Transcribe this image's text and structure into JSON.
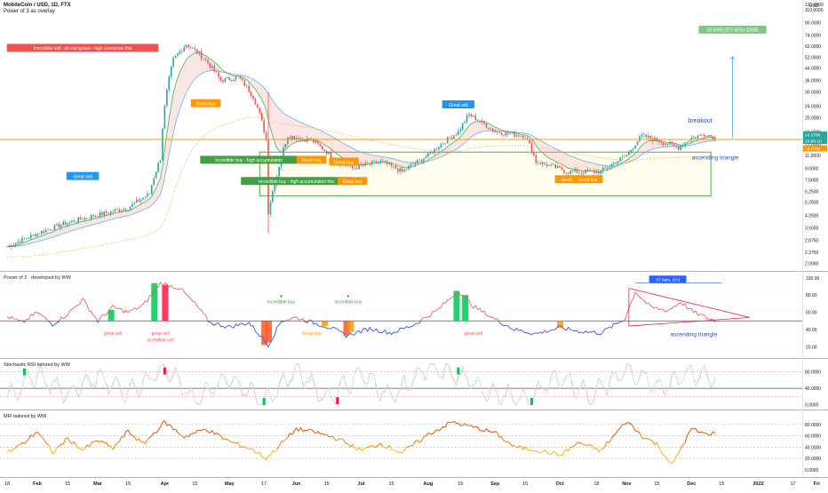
{
  "header": {
    "symbol": "MobileCoin / USD, 1D, FTX",
    "indicator": "Power of 3 as overlay"
  },
  "colors": {
    "up": "#26a69a",
    "down": "#ef5350",
    "price_line": "#ff9800",
    "ema_fast": "#4caf50",
    "ema_slow": "#64b5f6",
    "dots": "#ffb74d",
    "box": "#4caf50",
    "arrow": "#42a5f5",
    "target": "#81c784",
    "rsi_line": "#ef5350",
    "rsi_low": "#2962ff",
    "triangle": "#e91e63"
  },
  "chart_data": [
    {
      "type": "candlestick",
      "scale": "log",
      "ylim": [
        1.9,
        120
      ],
      "xlim": [
        "2021-01-18",
        "2022-01-26"
      ],
      "y_ticks": [
        "120.0000",
        "110.0000",
        "90.0000",
        "74.0000",
        "62.0000",
        "52.0000",
        "44.0000",
        "36.0000",
        "30.0000",
        "24.0000",
        "20.0000",
        "16.0000",
        "13.0000",
        "11.0000",
        "9.0000",
        "7.5000",
        "6.2500",
        "5.2500",
        "4.2500",
        "3.5000",
        "2.8750",
        "2.3750",
        "2.0000"
      ],
      "last_price_label": "14.3780",
      "countdown_label": "15:58:10",
      "level_label": "14.1700",
      "currency_label": "USD",
      "key_points": [
        {
          "date": "2021-01-18",
          "value": 2.6
        },
        {
          "date": "2021-02-01",
          "value": 3.2
        },
        {
          "date": "2021-02-15",
          "value": 3.8
        },
        {
          "date": "2021-03-01",
          "value": 4.3
        },
        {
          "date": "2021-03-15",
          "value": 4.8
        },
        {
          "date": "2021-03-25",
          "value": 6.0
        },
        {
          "date": "2021-03-30",
          "value": 10.5
        },
        {
          "date": "2021-04-05",
          "value": 50.0
        },
        {
          "date": "2021-04-11",
          "value": 64.0
        },
        {
          "date": "2021-04-17",
          "value": 55.0
        },
        {
          "date": "2021-04-27",
          "value": 36.0
        },
        {
          "date": "2021-05-05",
          "value": 38.0
        },
        {
          "date": "2021-05-12",
          "value": 28.0
        },
        {
          "date": "2021-05-18",
          "value": 14.0
        },
        {
          "date": "2021-05-19",
          "value": 4.5
        },
        {
          "date": "2021-05-23",
          "value": 8.0
        },
        {
          "date": "2021-05-28",
          "value": 15.0
        },
        {
          "date": "2021-06-08",
          "value": 14.0
        },
        {
          "date": "2021-06-20",
          "value": 10.0
        },
        {
          "date": "2021-06-27",
          "value": 9.0
        },
        {
          "date": "2021-07-10",
          "value": 10.0
        },
        {
          "date": "2021-07-20",
          "value": 8.5
        },
        {
          "date": "2021-08-01",
          "value": 11.0
        },
        {
          "date": "2021-08-15",
          "value": 16.0
        },
        {
          "date": "2021-08-20",
          "value": 21.0
        },
        {
          "date": "2021-09-01",
          "value": 16.0
        },
        {
          "date": "2021-09-15",
          "value": 15.0
        },
        {
          "date": "2021-09-20",
          "value": 10.0
        },
        {
          "date": "2021-10-05",
          "value": 8.5
        },
        {
          "date": "2021-10-20",
          "value": 8.5
        },
        {
          "date": "2021-11-01",
          "value": 11.0
        },
        {
          "date": "2021-11-08",
          "value": 15.0
        },
        {
          "date": "2021-11-15",
          "value": 14.0
        },
        {
          "date": "2021-11-25",
          "value": 12.5
        },
        {
          "date": "2021-12-01",
          "value": 14.5
        },
        {
          "date": "2021-12-08",
          "value": 15.5
        },
        {
          "date": "2021-12-12",
          "value": 14.4
        }
      ],
      "level": 14.17,
      "target_value": 94,
      "box": {
        "from": "2021-05-15",
        "to": "2021-12-10",
        "top": 11.6,
        "bottom": 5.8
      },
      "annotations": [
        {
          "text": "Incredible sell - do not ignore - high conviction this",
          "date": "2021-02-22",
          "value": 60,
          "kind": "sell_strong"
        },
        {
          "text": "Great sell",
          "date": "2021-02-22",
          "value": 7.9,
          "kind": "sell"
        },
        {
          "text": "Great buy",
          "date": "2021-04-20",
          "value": 25,
          "kind": "buy"
        },
        {
          "text": "Incredible buy - high accumulation",
          "date": "2021-05-10",
          "value": 10.2,
          "kind": "buy_strong"
        },
        {
          "text": "Great buy",
          "date": "2021-06-08",
          "value": 10.2,
          "kind": "buy"
        },
        {
          "text": "Incredible buy - high accumulation this",
          "date": "2021-06-01",
          "value": 7.3,
          "kind": "buy_strong"
        },
        {
          "text": "Great buy",
          "date": "2021-06-23",
          "value": 9.9,
          "kind": "buy"
        },
        {
          "text": "Great buy",
          "date": "2021-06-27",
          "value": 7.3,
          "kind": "buy"
        },
        {
          "text": "Great sell",
          "date": "2021-08-15",
          "value": 24.5,
          "kind": "sell"
        },
        {
          "text": "Great...",
          "date": "2021-10-05",
          "value": 7.5,
          "kind": "buy"
        },
        {
          "text": "Great buy",
          "date": "2021-10-14",
          "value": 7.5,
          "kind": "buy"
        },
        {
          "text": "50.9095 (372.40%) 10585",
          "date": "2021-12-20",
          "value": 80,
          "kind": "target"
        },
        {
          "text": "breakout",
          "date": "2021-12-05",
          "value": 18.5,
          "kind": "note"
        },
        {
          "text": "ascending triangle",
          "date": "2021-12-12",
          "value": 10.3,
          "kind": "note"
        }
      ]
    },
    {
      "type": "line",
      "title": "Power of 3 - developed by WW",
      "ylim": [
        10,
        104
      ],
      "y_ticks": [
        "100.00",
        "80.00",
        "60.00",
        "40.00",
        "20.00"
      ],
      "midline": 50,
      "key_points": [
        {
          "date": "2021-01-18",
          "value": 55
        },
        {
          "date": "2021-01-25",
          "value": 48
        },
        {
          "date": "2021-02-01",
          "value": 60
        },
        {
          "date": "2021-02-08",
          "value": 46
        },
        {
          "date": "2021-02-15",
          "value": 58
        },
        {
          "date": "2021-02-22",
          "value": 75
        },
        {
          "date": "2021-03-01",
          "value": 50
        },
        {
          "date": "2021-03-08",
          "value": 66
        },
        {
          "date": "2021-03-15",
          "value": 60
        },
        {
          "date": "2021-03-22",
          "value": 68
        },
        {
          "date": "2021-03-30",
          "value": 94
        },
        {
          "date": "2021-04-08",
          "value": 88
        },
        {
          "date": "2021-04-15",
          "value": 70
        },
        {
          "date": "2021-04-22",
          "value": 48
        },
        {
          "date": "2021-05-01",
          "value": 43
        },
        {
          "date": "2021-05-10",
          "value": 48
        },
        {
          "date": "2021-05-19",
          "value": 22
        },
        {
          "date": "2021-05-25",
          "value": 50
        },
        {
          "date": "2021-06-01",
          "value": 54
        },
        {
          "date": "2021-06-10",
          "value": 47
        },
        {
          "date": "2021-06-17",
          "value": 42
        },
        {
          "date": "2021-06-24",
          "value": 33
        },
        {
          "date": "2021-07-05",
          "value": 41
        },
        {
          "date": "2021-07-15",
          "value": 36
        },
        {
          "date": "2021-07-25",
          "value": 45
        },
        {
          "date": "2021-08-05",
          "value": 62
        },
        {
          "date": "2021-08-15",
          "value": 85
        },
        {
          "date": "2021-08-22",
          "value": 67
        },
        {
          "date": "2021-09-01",
          "value": 52
        },
        {
          "date": "2021-09-10",
          "value": 40
        },
        {
          "date": "2021-09-20",
          "value": 35
        },
        {
          "date": "2021-10-01",
          "value": 42
        },
        {
          "date": "2021-10-10",
          "value": 38
        },
        {
          "date": "2021-10-20",
          "value": 36
        },
        {
          "date": "2021-10-31",
          "value": 52
        },
        {
          "date": "2021-11-05",
          "value": 84
        },
        {
          "date": "2021-11-12",
          "value": 66
        },
        {
          "date": "2021-11-20",
          "value": 62
        },
        {
          "date": "2021-11-26",
          "value": 72
        },
        {
          "date": "2021-12-02",
          "value": 60
        },
        {
          "date": "2021-12-08",
          "value": 54
        },
        {
          "date": "2021-12-12",
          "value": 50
        }
      ],
      "annotations": [
        {
          "text": "great sell",
          "date": "2021-03-08",
          "value": 34,
          "kind": "sell"
        },
        {
          "text": "great sell",
          "date": "2021-03-30",
          "value": 34,
          "kind": "sell"
        },
        {
          "text": "incredible sell",
          "date": "2021-03-30",
          "value": 26,
          "kind": "sell"
        },
        {
          "text": "incredible buy",
          "date": "2021-05-25",
          "value": 85,
          "kind": "buy"
        },
        {
          "text": "incredible buy",
          "date": "2021-06-25",
          "value": 85,
          "kind": "buy"
        },
        {
          "text": "Great buy",
          "date": "2021-06-08",
          "value": 34,
          "kind": "buy_o"
        },
        {
          "text": "great sell",
          "date": "2021-08-22",
          "value": 34,
          "kind": "sell"
        },
        {
          "text": "37 bars, 37d",
          "date": "2021-11-20",
          "value": 98,
          "kind": "measure"
        },
        {
          "text": "ascending triangle",
          "date": "2021-12-02",
          "value": 32,
          "kind": "note"
        }
      ]
    },
    {
      "type": "line",
      "title": "Stochastic RSI tailored by WW",
      "ylim": [
        -5,
        105
      ],
      "y_ticks": [
        "80.0000",
        "40.0000",
        "0.0000"
      ],
      "key_points": [
        {
          "date": "2021-01-18",
          "value": 20
        },
        {
          "date": "2021-02-01",
          "value": 75
        },
        {
          "date": "2021-02-15",
          "value": 25
        },
        {
          "date": "2021-03-01",
          "value": 70
        },
        {
          "date": "2021-03-15",
          "value": 30
        },
        {
          "date": "2021-04-01",
          "value": 90
        },
        {
          "date": "2021-04-15",
          "value": 10
        },
        {
          "date": "2021-05-01",
          "value": 65
        },
        {
          "date": "2021-05-17",
          "value": 5
        },
        {
          "date": "2021-06-01",
          "value": 85
        },
        {
          "date": "2021-06-15",
          "value": 15
        },
        {
          "date": "2021-07-01",
          "value": 75
        },
        {
          "date": "2021-07-15",
          "value": 20
        },
        {
          "date": "2021-08-01",
          "value": 90
        },
        {
          "date": "2021-08-15",
          "value": 70
        },
        {
          "date": "2021-09-01",
          "value": 25
        },
        {
          "date": "2021-09-15",
          "value": 10
        },
        {
          "date": "2021-10-01",
          "value": 70
        },
        {
          "date": "2021-10-15",
          "value": 20
        },
        {
          "date": "2021-11-01",
          "value": 85
        },
        {
          "date": "2021-11-15",
          "value": 40
        },
        {
          "date": "2021-12-01",
          "value": 80
        },
        {
          "date": "2021-12-12",
          "value": 65
        }
      ]
    },
    {
      "type": "line",
      "title": "MFI tailored by WW",
      "ylim": [
        -5,
        100
      ],
      "y_ticks": [
        "80.0000",
        "60.0000",
        "40.0000",
        "20.0000",
        "0.0000"
      ],
      "key_points": [
        {
          "date": "2021-01-18",
          "value": 30
        },
        {
          "date": "2021-01-25",
          "value": 45
        },
        {
          "date": "2021-02-01",
          "value": 68
        },
        {
          "date": "2021-02-08",
          "value": 30
        },
        {
          "date": "2021-02-15",
          "value": 55
        },
        {
          "date": "2021-02-22",
          "value": 35
        },
        {
          "date": "2021-03-01",
          "value": 52
        },
        {
          "date": "2021-03-08",
          "value": 38
        },
        {
          "date": "2021-03-15",
          "value": 68
        },
        {
          "date": "2021-03-22",
          "value": 45
        },
        {
          "date": "2021-04-01",
          "value": 84
        },
        {
          "date": "2021-04-10",
          "value": 58
        },
        {
          "date": "2021-04-20",
          "value": 72
        },
        {
          "date": "2021-05-01",
          "value": 50
        },
        {
          "date": "2021-05-12",
          "value": 35
        },
        {
          "date": "2021-05-18",
          "value": 20
        },
        {
          "date": "2021-06-01",
          "value": 72
        },
        {
          "date": "2021-06-10",
          "value": 66
        },
        {
          "date": "2021-06-20",
          "value": 55
        },
        {
          "date": "2021-07-01",
          "value": 34
        },
        {
          "date": "2021-07-10",
          "value": 46
        },
        {
          "date": "2021-07-20",
          "value": 30
        },
        {
          "date": "2021-08-01",
          "value": 62
        },
        {
          "date": "2021-08-12",
          "value": 84
        },
        {
          "date": "2021-08-22",
          "value": 75
        },
        {
          "date": "2021-09-01",
          "value": 65
        },
        {
          "date": "2021-09-10",
          "value": 40
        },
        {
          "date": "2021-09-20",
          "value": 35
        },
        {
          "date": "2021-10-01",
          "value": 26
        },
        {
          "date": "2021-10-10",
          "value": 48
        },
        {
          "date": "2021-10-20",
          "value": 33
        },
        {
          "date": "2021-11-01",
          "value": 86
        },
        {
          "date": "2021-11-08",
          "value": 60
        },
        {
          "date": "2021-11-15",
          "value": 45
        },
        {
          "date": "2021-11-22",
          "value": 8
        },
        {
          "date": "2021-12-01",
          "value": 72
        },
        {
          "date": "2021-12-08",
          "value": 62
        },
        {
          "date": "2021-12-12",
          "value": 66
        }
      ]
    }
  ],
  "x_axis": {
    "ticks": [
      {
        "label": "18",
        "date": "2021-01-18"
      },
      {
        "label": "Feb",
        "date": "2021-02-01"
      },
      {
        "label": "15",
        "date": "2021-02-15"
      },
      {
        "label": "Mar",
        "date": "2021-03-01"
      },
      {
        "label": "15",
        "date": "2021-03-15"
      },
      {
        "label": "Apr",
        "date": "2021-04-01"
      },
      {
        "label": "15",
        "date": "2021-04-15"
      },
      {
        "label": "May",
        "date": "2021-05-01"
      },
      {
        "label": "17",
        "date": "2021-05-17"
      },
      {
        "label": "Jun",
        "date": "2021-06-01"
      },
      {
        "label": "15",
        "date": "2021-06-15"
      },
      {
        "label": "Jul",
        "date": "2021-07-01"
      },
      {
        "label": "15",
        "date": "2021-07-15"
      },
      {
        "label": "Aug",
        "date": "2021-08-01"
      },
      {
        "label": "16",
        "date": "2021-08-16"
      },
      {
        "label": "Sep",
        "date": "2021-09-01"
      },
      {
        "label": "15",
        "date": "2021-09-15"
      },
      {
        "label": "Oct",
        "date": "2021-10-01"
      },
      {
        "label": "18",
        "date": "2021-10-18"
      },
      {
        "label": "Nov",
        "date": "2021-11-01"
      },
      {
        "label": "15",
        "date": "2021-11-15"
      },
      {
        "label": "Dec",
        "date": "2021-12-01"
      },
      {
        "label": "15",
        "date": "2021-12-15"
      },
      {
        "label": "2022",
        "date": "2022-01-01"
      },
      {
        "label": "17",
        "date": "2022-01-17"
      },
      {
        "label": "Fri",
        "date": "2022-01-28"
      }
    ]
  }
}
